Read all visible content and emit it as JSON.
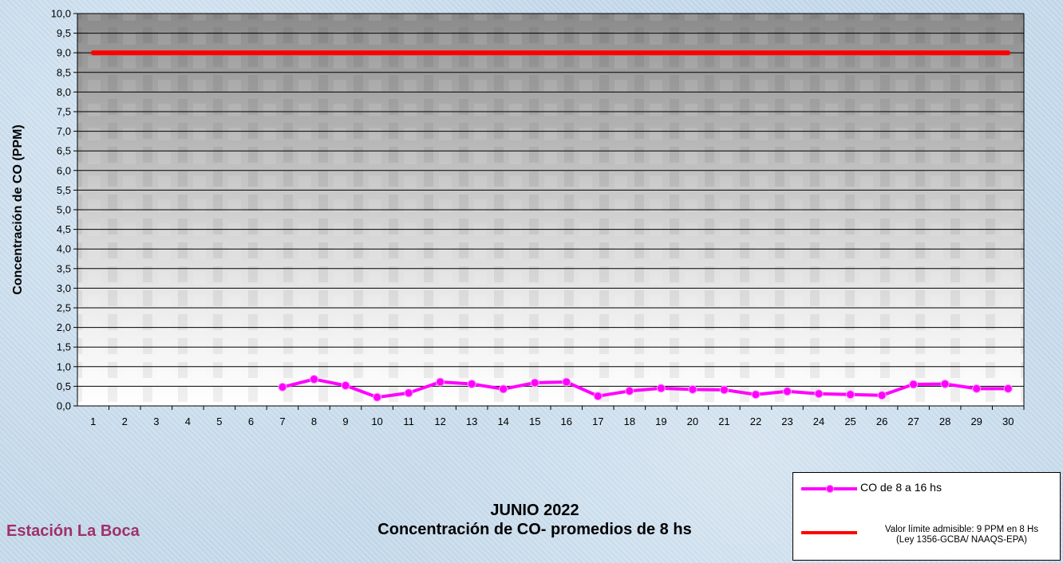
{
  "station": "Estación La Boca",
  "title": {
    "line1": "JUNIO 2022",
    "line2": "Concentración de CO- promedios de 8 hs"
  },
  "legend": {
    "co_label": "CO de 8 a 16 hs",
    "limit_line1": "Valor límite admisible: 9 PPM en 8 Hs",
    "limit_line2": "(Ley 1356-GCBA/ NAAQS-EPA)"
  },
  "colors": {
    "co_series": "#ff00ff",
    "limit_series": "#ff0000"
  },
  "chart_data": {
    "type": "line",
    "ylabel": "Concentración de CO (PPM)",
    "ylim": [
      0,
      10
    ],
    "yticks": [
      "0,0",
      "0,5",
      "1,0",
      "1,5",
      "2,0",
      "2,5",
      "3,0",
      "3,5",
      "4,0",
      "4,5",
      "5,0",
      "5,5",
      "6,0",
      "6,5",
      "7,0",
      "7,5",
      "8,0",
      "8,5",
      "9,0",
      "9,5",
      "10,0"
    ],
    "categories": [
      "1",
      "2",
      "3",
      "4",
      "5",
      "6",
      "7",
      "8",
      "9",
      "10",
      "11",
      "12",
      "13",
      "14",
      "15",
      "16",
      "17",
      "18",
      "19",
      "20",
      "21",
      "22",
      "23",
      "24",
      "25",
      "26",
      "27",
      "28",
      "29",
      "30"
    ],
    "grid": true,
    "series": [
      {
        "name": "CO de 8 a 16 hs",
        "values": [
          null,
          null,
          null,
          null,
          null,
          null,
          0.48,
          0.68,
          0.52,
          0.22,
          0.33,
          0.61,
          0.56,
          0.43,
          0.59,
          0.61,
          0.25,
          0.38,
          0.45,
          0.42,
          0.41,
          0.29,
          0.37,
          0.31,
          0.29,
          0.27,
          0.55,
          0.56,
          0.44,
          0.44
        ]
      },
      {
        "name": "Valor límite admisible: 9 PPM en 8 Hs",
        "values": [
          9,
          9,
          9,
          9,
          9,
          9,
          9,
          9,
          9,
          9,
          9,
          9,
          9,
          9,
          9,
          9,
          9,
          9,
          9,
          9,
          9,
          9,
          9,
          9,
          9,
          9,
          9,
          9,
          9,
          9
        ]
      }
    ]
  }
}
